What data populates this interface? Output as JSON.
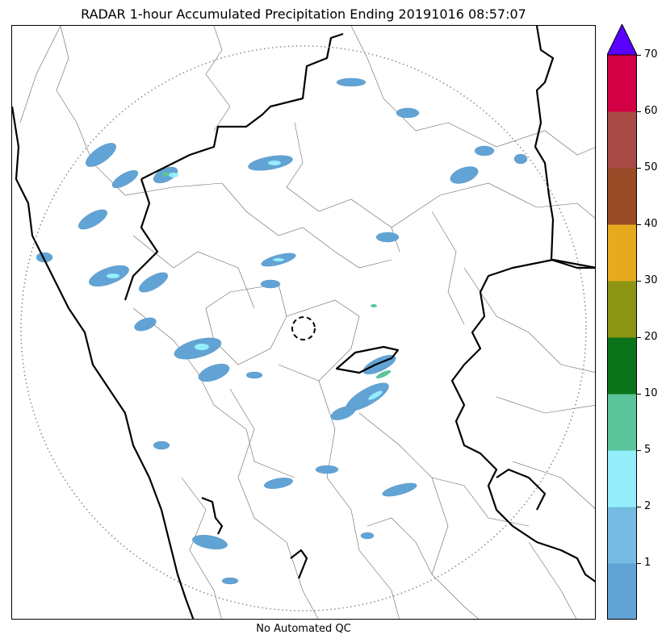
{
  "title": "RADAR 1-hour Accumulated Precipitation Ending 20191016 08:57:07",
  "footer_note": "No Automated QC",
  "colorbar": {
    "extend_max": true,
    "extend_color": "#5a00ff",
    "bins": [
      {
        "from": 0,
        "to": 1,
        "color": "#62a3d5"
      },
      {
        "from": 1,
        "to": 2,
        "color": "#76bbe2"
      },
      {
        "from": 2,
        "to": 5,
        "color": "#94eefc"
      },
      {
        "from": 5,
        "to": 10,
        "color": "#5cc49a"
      },
      {
        "from": 10,
        "to": 20,
        "color": "#0b7319"
      },
      {
        "from": 20,
        "to": 30,
        "color": "#8b9413"
      },
      {
        "from": 30,
        "to": 40,
        "color": "#e6aa1f"
      },
      {
        "from": 40,
        "to": 50,
        "color": "#9a4b27"
      },
      {
        "from": 50,
        "to": 60,
        "color": "#a84a45"
      },
      {
        "from": 60,
        "to": 70,
        "color": "#d20044"
      }
    ],
    "tick_labels": [
      "1",
      "2",
      "5",
      "10",
      "20",
      "30",
      "40",
      "50",
      "60",
      "70"
    ]
  },
  "map": {
    "range_ring_style": "dotted",
    "radar_site_marker": "dashed-circle",
    "boundary_colors": {
      "coast_state": "#000000",
      "district": "#555555"
    }
  }
}
